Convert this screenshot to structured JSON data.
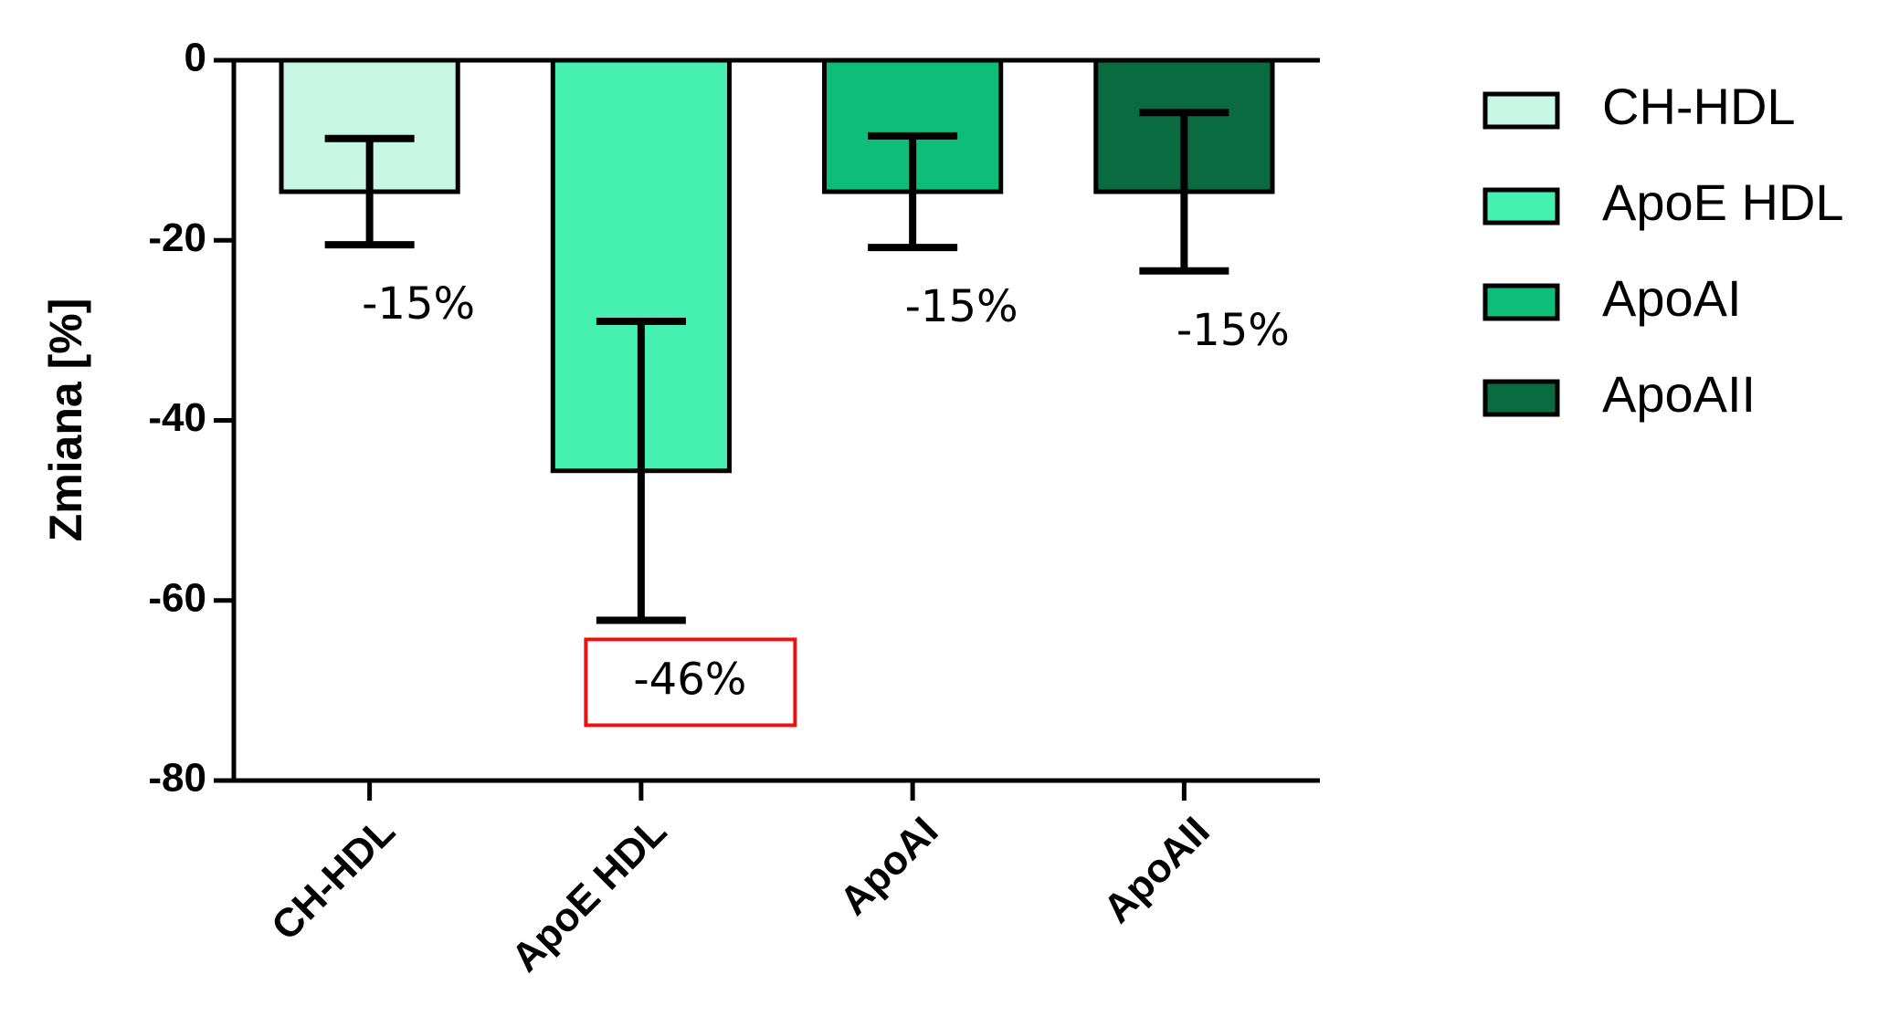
{
  "chart_data": {
    "type": "bar",
    "y_label": "Zmiana [%]",
    "categories": [
      "CH-HDL",
      "ApoE HDL",
      "ApoAI",
      "ApoAII"
    ],
    "series": [
      {
        "name": "Zmiana",
        "values": [
          -14.6,
          -45.6,
          -14.6,
          -14.6
        ],
        "errors": [
          5.9,
          16.6,
          6.2,
          8.8
        ],
        "value_labels": [
          "-15%",
          "-46%",
          "-15%",
          "-15%"
        ]
      }
    ],
    "colors": [
      "#c9f7e6",
      "#45f0b0",
      "#0dbd78",
      "#0a6b40"
    ],
    "ylim": [
      -80,
      0
    ],
    "yticks": [
      0,
      -20,
      -40,
      -60,
      -80
    ],
    "legend": "right",
    "value_label_box": {
      "category": "ApoE HDL",
      "color": "#ee1111"
    }
  }
}
